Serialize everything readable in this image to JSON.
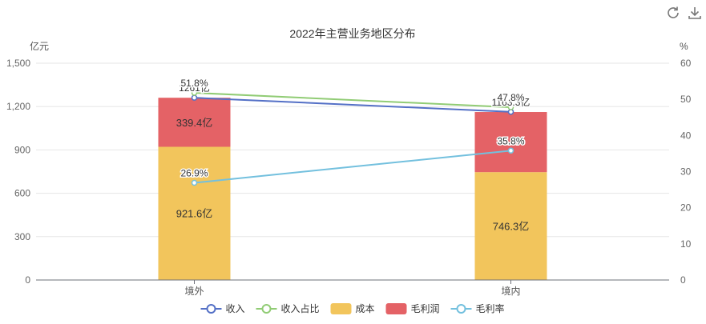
{
  "toolbar": {
    "icons": [
      "refresh-icon",
      "download-icon"
    ]
  },
  "chart_data": {
    "type": "bar",
    "title": "2022年主营业务地区分布",
    "categories": [
      "境外",
      "境内"
    ],
    "left_axis": {
      "unit": "亿元",
      "ticks": [
        "0",
        "300",
        "600",
        "900",
        "1,200",
        "1,500"
      ],
      "ylim": [
        0,
        1500
      ]
    },
    "right_axis": {
      "unit": "%",
      "ticks": [
        "0",
        "10",
        "20",
        "30",
        "40",
        "50",
        "60"
      ],
      "ylim": [
        0,
        60
      ]
    },
    "bar_series": [
      {
        "name": "成本",
        "color": "#f2c55c",
        "values": [
          921.6,
          746.3
        ],
        "labels": [
          "921.6亿",
          "746.3亿"
        ]
      },
      {
        "name": "毛利润",
        "color": "#e46266",
        "values": [
          339.4,
          416.0
        ],
        "labels": [
          "339.4亿",
          ""
        ]
      }
    ],
    "line_series": [
      {
        "name": "收入",
        "color": "#5470c6",
        "axis": "left",
        "values": [
          1261.0,
          1163.3
        ],
        "labels": [
          "1261亿",
          "1163.3亿"
        ]
      },
      {
        "name": "收入占比",
        "color": "#91cc75",
        "axis": "right",
        "values": [
          51.8,
          47.8
        ],
        "labels": [
          "51.8%",
          "47.8%"
        ]
      },
      {
        "name": "毛利率",
        "color": "#73c0de",
        "axis": "right",
        "values": [
          26.9,
          35.8
        ],
        "labels": [
          "26.9%",
          "35.8%"
        ]
      }
    ],
    "legend": {
      "placement": "bottom-center",
      "items": [
        {
          "name": "收入",
          "kind": "line",
          "color": "#5470c6"
        },
        {
          "name": "收入占比",
          "kind": "line",
          "color": "#91cc75"
        },
        {
          "name": "成本",
          "kind": "bar",
          "color": "#f2c55c"
        },
        {
          "name": "毛利润",
          "kind": "bar",
          "color": "#e46266"
        },
        {
          "name": "毛利率",
          "kind": "line",
          "color": "#73c0de"
        }
      ]
    },
    "grid": true
  }
}
